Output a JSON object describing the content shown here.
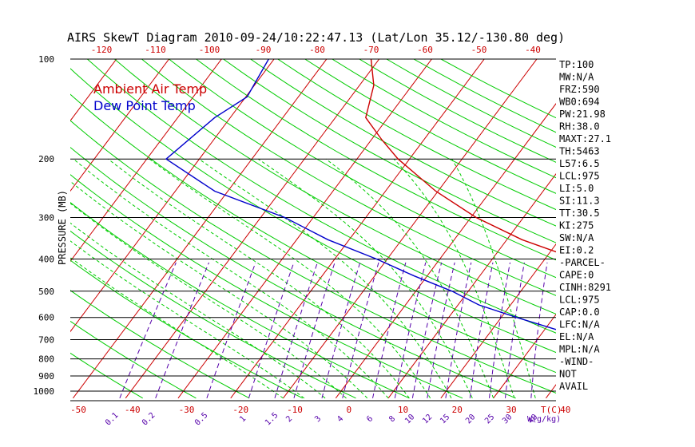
{
  "chart_data": {
    "type": "line",
    "title": "AIRS SkewT Diagram 2010-09-24/10:22:47.13 (Lat/Lon 35.12/-130.80 deg)",
    "ylabel": "PRESSURE (MB)",
    "xlabel": "T(C)",
    "mixing_label": "W(g/kg)",
    "y_scale": "log",
    "ylim": [
      1050,
      100
    ],
    "xlim": [
      -52,
      48
    ],
    "top_ticks": [
      -120,
      -110,
      -100,
      -90,
      -80,
      -70,
      -60,
      -50,
      -40
    ],
    "bottom_ticks": [
      -50,
      -40,
      -30,
      -20,
      -10,
      0,
      10,
      20,
      30,
      40
    ],
    "pressure_ticks": [
      100,
      200,
      300,
      400,
      500,
      600,
      700,
      800,
      900,
      1000
    ],
    "mixing_ratio_labels": [
      0.1,
      0.2,
      0.5,
      1,
      1.5,
      2,
      3,
      4,
      6,
      8,
      10,
      12,
      15,
      20,
      25,
      30,
      40
    ],
    "colors": {
      "temp": "#cc0000",
      "dewpoint": "#0000cc",
      "dry_adiabat": "#00cc00",
      "moist_adiabat": "#00cc00",
      "isotherm": "#cc0000",
      "mixing_ratio": "#5500aa",
      "isobar": "#000000"
    },
    "series": [
      {
        "name": "Ambient Air Temp",
        "p": [
          100,
          120,
          150,
          175,
          200,
          250,
          300,
          350,
          400,
          450,
          500,
          550,
          600,
          650,
          700,
          750,
          800,
          850,
          900,
          950,
          1000,
          1030
        ],
        "t": [
          -70,
          -69.5,
          -71,
          -68,
          -65,
          -58,
          -50.5,
          -42,
          -32,
          -25,
          -18,
          -12.5,
          -7,
          -2,
          2,
          4,
          5,
          7,
          10,
          15,
          18,
          20
        ]
      },
      {
        "name": "Dew Point Temp",
        "p": [
          100,
          130,
          150,
          200,
          250,
          300,
          350,
          400,
          450,
          500,
          550,
          600,
          650,
          700,
          750,
          800,
          850,
          880,
          920,
          960,
          1000,
          1030
        ],
        "t": [
          -89,
          -93,
          -99,
          -108,
          -99,
          -86,
          -78,
          -69,
          -62,
          -55,
          -50,
          -43,
          -36,
          -29,
          -22,
          -15,
          -8,
          -6,
          0,
          4,
          8,
          10
        ]
      }
    ],
    "stats": [
      "TP:100",
      "MW:N/A",
      "FRZ:590",
      "WB0:694",
      "PW:21.98",
      "RH:38.0",
      "MAXT:27.1",
      "TH:5463",
      "L57:6.5",
      "LCL:975",
      "LI:5.0",
      "SI:11.3",
      "TT:30.5",
      "KI:275",
      "SW:N/A",
      "EI:0.2",
      "-PARCEL-",
      "CAPE:0",
      "CINH:8291",
      "LCL:975",
      "CAP:0.0",
      "LFC:N/A",
      "EL:N/A",
      "MPL:N/A",
      "-WIND-",
      "NOT",
      "AVAIL"
    ]
  }
}
